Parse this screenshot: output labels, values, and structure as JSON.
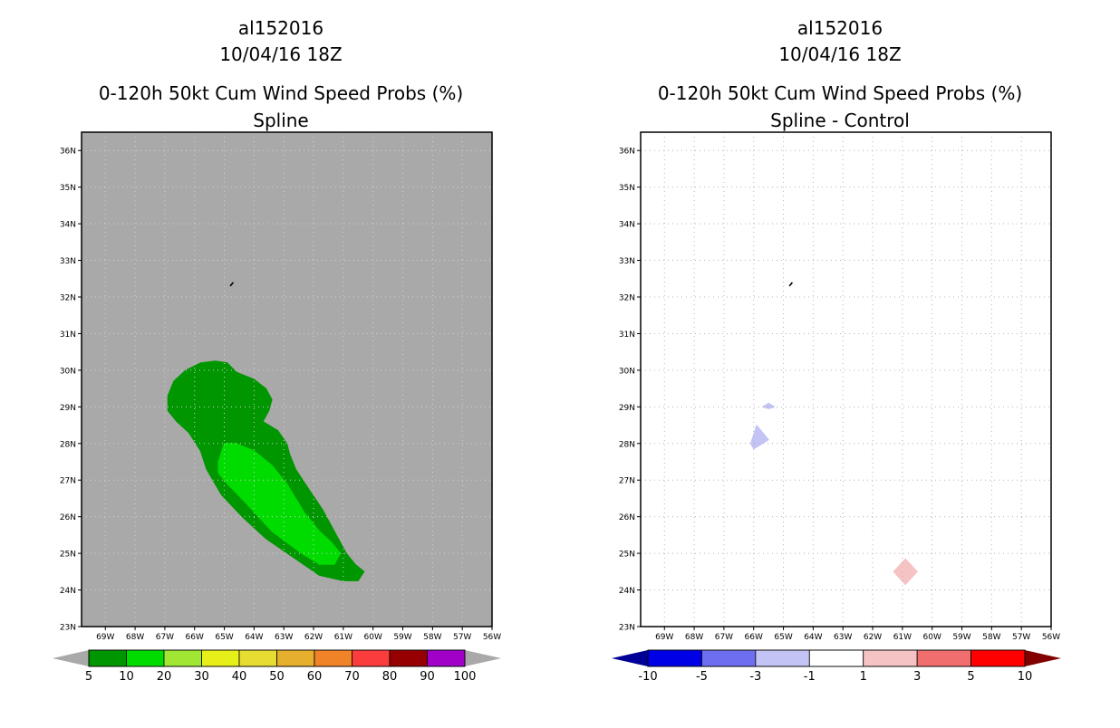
{
  "chart_data": [
    {
      "type": "heatmap",
      "storm_id": "al152016",
      "date": "10/04/16 18Z",
      "title": "0-120h 50kt Cum Wind Speed Probs (%)",
      "subtitle": "Spline",
      "xlabel": "",
      "ylabel": "",
      "lon_ticks": [
        "69W",
        "68W",
        "67W",
        "66W",
        "65W",
        "64W",
        "63W",
        "62W",
        "61W",
        "60W",
        "59W",
        "58W",
        "57W",
        "56W"
      ],
      "lat_ticks": [
        "36N",
        "35N",
        "34N",
        "33N",
        "32N",
        "31N",
        "30N",
        "29N",
        "28N",
        "27N",
        "26N",
        "25N",
        "24N",
        "23N"
      ],
      "xlim": [
        -69.8,
        -56
      ],
      "ylim": [
        23,
        36.5
      ],
      "background_color": "#a9a9a9",
      "grid": "dotted",
      "colorbar": {
        "labels": [
          "5",
          "10",
          "20",
          "30",
          "40",
          "50",
          "60",
          "70",
          "80",
          "90",
          "100"
        ],
        "colors": [
          "#009600",
          "#00dc00",
          "#a0e632",
          "#e6f018",
          "#e6dc32",
          "#e6af2d",
          "#f08228",
          "#fa3c3c",
          "#960000",
          "#a000c8"
        ],
        "under_color": "#a9a9a9",
        "over_color": "#a9a9a9"
      },
      "regions": [
        {
          "name": "prob-5-10",
          "color": "#009600",
          "lonlat": [
            [
              -66.9,
              28.9
            ],
            [
              -66.9,
              29.3
            ],
            [
              -66.7,
              29.7
            ],
            [
              -66.3,
              30.0
            ],
            [
              -65.8,
              30.2
            ],
            [
              -65.3,
              30.25
            ],
            [
              -64.9,
              30.2
            ],
            [
              -64.6,
              29.95
            ],
            [
              -64.3,
              29.85
            ],
            [
              -64.0,
              29.75
            ],
            [
              -63.6,
              29.5
            ],
            [
              -63.4,
              29.2
            ],
            [
              -63.5,
              28.9
            ],
            [
              -63.7,
              28.6
            ],
            [
              -63.2,
              28.35
            ],
            [
              -62.9,
              28.0
            ],
            [
              -62.8,
              27.7
            ],
            [
              -62.6,
              27.3
            ],
            [
              -62.2,
              26.8
            ],
            [
              -61.7,
              26.2
            ],
            [
              -61.3,
              25.6
            ],
            [
              -60.9,
              25.0
            ],
            [
              -60.6,
              24.7
            ],
            [
              -60.3,
              24.5
            ],
            [
              -60.5,
              24.25
            ],
            [
              -61.0,
              24.25
            ],
            [
              -61.8,
              24.4
            ],
            [
              -62.7,
              24.9
            ],
            [
              -63.6,
              25.4
            ],
            [
              -64.4,
              26.0
            ],
            [
              -65.1,
              26.6
            ],
            [
              -65.6,
              27.3
            ],
            [
              -65.8,
              27.8
            ],
            [
              -66.2,
              28.3
            ],
            [
              -66.6,
              28.6
            ]
          ]
        },
        {
          "name": "prob-10-20",
          "color": "#00dc00",
          "lonlat": [
            [
              -65.2,
              27.5
            ],
            [
              -65.0,
              28.0
            ],
            [
              -64.6,
              28.0
            ],
            [
              -64.0,
              27.8
            ],
            [
              -63.4,
              27.4
            ],
            [
              -62.9,
              26.9
            ],
            [
              -62.3,
              26.1
            ],
            [
              -61.8,
              25.6
            ],
            [
              -61.4,
              25.3
            ],
            [
              -61.1,
              25.0
            ],
            [
              -61.3,
              24.7
            ],
            [
              -61.8,
              24.7
            ],
            [
              -62.4,
              25.0
            ],
            [
              -63.4,
              25.6
            ],
            [
              -64.3,
              26.4
            ],
            [
              -64.9,
              26.9
            ],
            [
              -65.2,
              27.2
            ]
          ]
        }
      ],
      "island": {
        "lonlat": [
          [
            -64.8,
            32.3
          ],
          [
            -64.7,
            32.4
          ]
        ]
      }
    },
    {
      "type": "heatmap",
      "storm_id": "al152016",
      "date": "10/04/16 18Z",
      "title": "0-120h 50kt Cum Wind Speed Probs (%)",
      "subtitle": "Spline - Control",
      "xlabel": "",
      "ylabel": "",
      "lon_ticks": [
        "69W",
        "68W",
        "67W",
        "66W",
        "65W",
        "64W",
        "63W",
        "62W",
        "61W",
        "60W",
        "59W",
        "58W",
        "57W",
        "56W"
      ],
      "lat_ticks": [
        "36N",
        "35N",
        "34N",
        "33N",
        "32N",
        "31N",
        "30N",
        "29N",
        "28N",
        "27N",
        "26N",
        "25N",
        "24N",
        "23N"
      ],
      "xlim": [
        -69.8,
        -56
      ],
      "ylim": [
        23,
        36.5
      ],
      "background_color": "#ffffff",
      "grid": "dotted",
      "colorbar": {
        "labels": [
          "-10",
          "-5",
          "-3",
          "-1",
          "1",
          "3",
          "5",
          "10"
        ],
        "colors": [
          "#0000e6",
          "#6e6ef0",
          "#c3c3f5",
          "#ffffff",
          "#f5c3c3",
          "#f06e6e",
          "#ff0000"
        ],
        "under_color": "#000096",
        "over_color": "#820000"
      },
      "regions": [
        {
          "name": "diff-neg-1-3-a",
          "color": "#c3c3f5",
          "lonlat": [
            [
              -66.1,
              28.0
            ],
            [
              -65.9,
              28.5
            ],
            [
              -65.5,
              28.1
            ],
            [
              -66.0,
              27.85
            ]
          ]
        },
        {
          "name": "diff-neg-1-3-b",
          "color": "#c3c3f5",
          "lonlat": [
            [
              -65.7,
              29.0
            ],
            [
              -65.5,
              29.1
            ],
            [
              -65.3,
              29.0
            ],
            [
              -65.5,
              28.95
            ]
          ]
        },
        {
          "name": "diff-pos-1-3",
          "color": "#f5c3c3",
          "lonlat": [
            [
              -61.3,
              24.5
            ],
            [
              -60.9,
              24.85
            ],
            [
              -60.5,
              24.5
            ],
            [
              -60.9,
              24.15
            ]
          ]
        }
      ],
      "island": {
        "lonlat": [
          [
            -64.8,
            32.3
          ],
          [
            -64.7,
            32.4
          ]
        ]
      }
    }
  ]
}
